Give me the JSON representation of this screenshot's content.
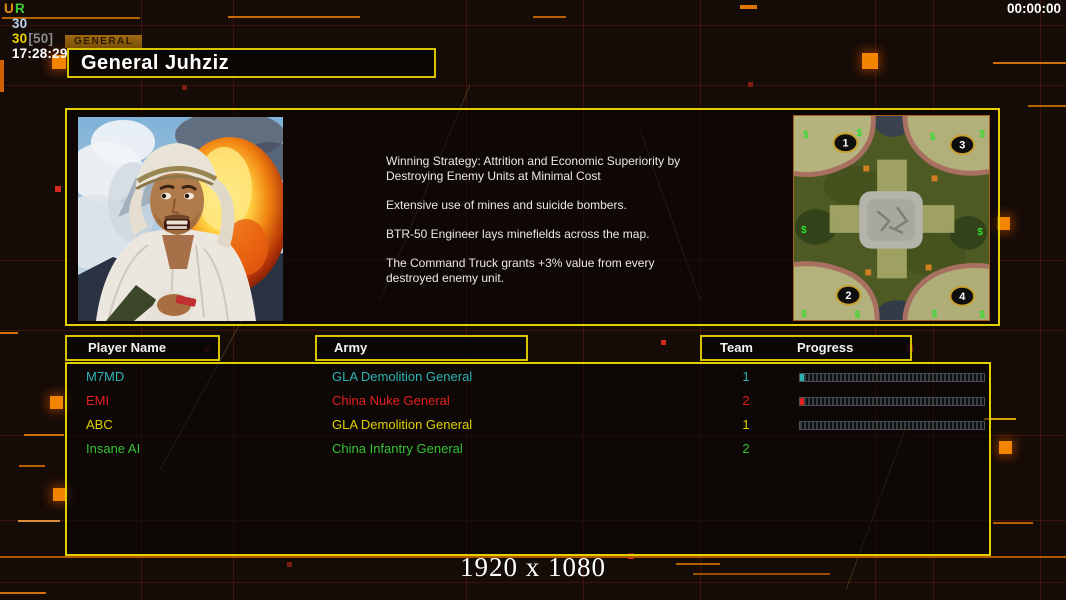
{
  "hud": {
    "u": "U",
    "r": "R",
    "fps": "30",
    "fps_cap_current": "30",
    "fps_cap": "[50]",
    "clock": "17:28:29",
    "match_timer": "00:00:00"
  },
  "colors": {
    "hud_u": "#e89010",
    "hud_r": "#3ad03a",
    "hud_fps": "#b8d4f0",
    "hud_fps2": "#ecd000",
    "hud_cap": "#8a8a8a",
    "hud_clock": "#ffffff"
  },
  "general": {
    "tab_label": "GENERAL",
    "name": "General Juhziz",
    "strategy_paragraphs": {
      "p1": "Winning Strategy: Attrition and Economic Superiority by\n Destroying Enemy Units at Minimal Cost",
      "p2": "Extensive use of mines and suicide bombers.",
      "p3": "BTR-50 Engineer lays minefields across the map.",
      "p4": "The Command Truck grants +3% value from every\n destroyed enemy unit."
    }
  },
  "map": {
    "markers": {
      "m1": "1",
      "m2": "2",
      "m3": "3",
      "m4": "4"
    },
    "money_symbol": "$"
  },
  "table": {
    "headers": {
      "player": "Player Name",
      "army": "Army",
      "team": "Team",
      "progress": "Progress"
    },
    "rows": [
      {
        "name": "M7MD",
        "army": "GLA Demolition General",
        "team": "1",
        "color": "#2cb4b4",
        "progress": 2,
        "has_bar": true
      },
      {
        "name": "EMI",
        "army": "China Nuke General",
        "team": "2",
        "color": "#e32020",
        "progress": 2,
        "has_bar": true
      },
      {
        "name": "ABC",
        "army": "GLA Demolition General",
        "team": "1",
        "color": "#ded200",
        "progress": 0,
        "has_bar": true
      },
      {
        "name": "Insane AI",
        "army": "China Infantry General",
        "team": "2",
        "color": "#35c235",
        "progress": 0,
        "has_bar": false
      }
    ]
  },
  "footer": {
    "resolution": "1920 x 1080"
  }
}
